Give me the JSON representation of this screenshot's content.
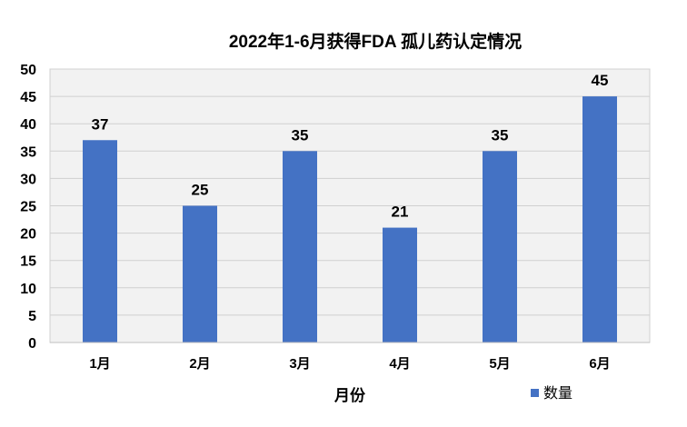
{
  "chart_data": {
    "type": "bar",
    "title": "2022年1-6月获得FDA 孤儿药认定情况",
    "xlabel": "月份",
    "ylabel": "",
    "categories": [
      "1月",
      "2月",
      "3月",
      "4月",
      "5月",
      "6月"
    ],
    "series": [
      {
        "name": "数量",
        "values": [
          37,
          25,
          35,
          21,
          35,
          45
        ],
        "color": "#4472C4"
      }
    ],
    "ylim": [
      0,
      50
    ],
    "yticks": [
      "0",
      "5",
      "10",
      "15",
      "20",
      "25",
      "30",
      "35",
      "40",
      "45",
      "50"
    ],
    "grid": true,
    "legend": "bottom-right",
    "data_labels": true,
    "plot_background": "#F2F2F2",
    "grid_color": "#D0D0D0"
  }
}
